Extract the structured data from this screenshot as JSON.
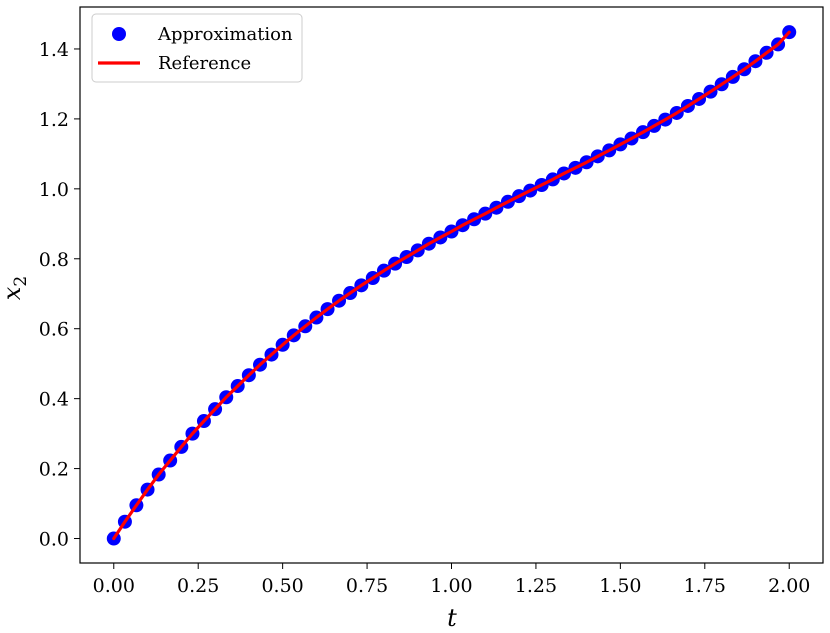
{
  "chart_data": {
    "type": "line",
    "xlabel": "t",
    "ylabel": "x",
    "ylabel_subscript": "2",
    "xlim": [
      -0.1,
      2.1
    ],
    "ylim": [
      -0.07,
      1.52
    ],
    "xticks": [
      0.0,
      0.25,
      0.5,
      0.75,
      1.0,
      1.25,
      1.5,
      1.75,
      2.0
    ],
    "xtick_labels": [
      "0.00",
      "0.25",
      "0.50",
      "0.75",
      "1.00",
      "1.25",
      "1.50",
      "1.75",
      "2.00"
    ],
    "yticks": [
      0.0,
      0.2,
      0.4,
      0.6,
      0.8,
      1.0,
      1.2,
      1.4
    ],
    "ytick_labels": [
      "0.0",
      "0.2",
      "0.4",
      "0.6",
      "0.8",
      "1.0",
      "1.2",
      "1.4"
    ],
    "grid": false,
    "legend": {
      "position": "top-left",
      "entries": [
        {
          "label": "Approximation",
          "marker": "circle",
          "color": "#0000ff"
        },
        {
          "label": "Reference",
          "marker": "line",
          "color": "#ff0000"
        }
      ]
    },
    "series": [
      {
        "name": "Approximation",
        "style": "markers",
        "color": "#0000ff",
        "x": [
          0.0,
          0.033,
          0.067,
          0.1,
          0.133,
          0.167,
          0.2,
          0.233,
          0.267,
          0.3,
          0.333,
          0.367,
          0.4,
          0.433,
          0.467,
          0.5,
          0.533,
          0.567,
          0.6,
          0.633,
          0.667,
          0.7,
          0.733,
          0.767,
          0.8,
          0.833,
          0.867,
          0.9,
          0.933,
          0.967,
          1.0,
          1.033,
          1.067,
          1.1,
          1.133,
          1.167,
          1.2,
          1.233,
          1.267,
          1.3,
          1.333,
          1.367,
          1.4,
          1.433,
          1.467,
          1.5,
          1.533,
          1.567,
          1.6,
          1.633,
          1.667,
          1.7,
          1.733,
          1.767,
          1.8,
          1.833,
          1.867,
          1.9,
          1.933,
          1.967,
          2.0
        ],
        "y": [
          0.0,
          0.048,
          0.095,
          0.14,
          0.183,
          0.223,
          0.262,
          0.3,
          0.336,
          0.37,
          0.404,
          0.436,
          0.467,
          0.497,
          0.526,
          0.554,
          0.581,
          0.607,
          0.632,
          0.656,
          0.68,
          0.702,
          0.724,
          0.745,
          0.766,
          0.786,
          0.805,
          0.824,
          0.843,
          0.861,
          0.878,
          0.896,
          0.913,
          0.929,
          0.946,
          0.963,
          0.979,
          0.995,
          1.011,
          1.027,
          1.044,
          1.06,
          1.076,
          1.093,
          1.11,
          1.127,
          1.144,
          1.162,
          1.18,
          1.198,
          1.217,
          1.237,
          1.257,
          1.278,
          1.299,
          1.32,
          1.342,
          1.365,
          1.389,
          1.413,
          1.448
        ]
      },
      {
        "name": "Reference",
        "style": "line",
        "color": "#ff0000",
        "x": [
          0.0,
          0.033,
          0.067,
          0.1,
          0.133,
          0.167,
          0.2,
          0.233,
          0.267,
          0.3,
          0.333,
          0.367,
          0.4,
          0.433,
          0.467,
          0.5,
          0.533,
          0.567,
          0.6,
          0.633,
          0.667,
          0.7,
          0.733,
          0.767,
          0.8,
          0.833,
          0.867,
          0.9,
          0.933,
          0.967,
          1.0,
          1.033,
          1.067,
          1.1,
          1.133,
          1.167,
          1.2,
          1.233,
          1.267,
          1.3,
          1.333,
          1.367,
          1.4,
          1.433,
          1.467,
          1.5,
          1.533,
          1.567,
          1.6,
          1.633,
          1.667,
          1.7,
          1.733,
          1.767,
          1.8,
          1.833,
          1.867,
          1.9,
          1.933,
          1.967,
          2.0
        ],
        "y": [
          0.0,
          0.048,
          0.095,
          0.14,
          0.183,
          0.223,
          0.262,
          0.3,
          0.336,
          0.37,
          0.404,
          0.436,
          0.467,
          0.497,
          0.526,
          0.554,
          0.581,
          0.607,
          0.632,
          0.656,
          0.68,
          0.702,
          0.724,
          0.745,
          0.766,
          0.786,
          0.805,
          0.824,
          0.843,
          0.861,
          0.878,
          0.896,
          0.913,
          0.929,
          0.946,
          0.963,
          0.979,
          0.995,
          1.011,
          1.027,
          1.044,
          1.06,
          1.076,
          1.093,
          1.11,
          1.127,
          1.144,
          1.162,
          1.18,
          1.198,
          1.217,
          1.237,
          1.257,
          1.278,
          1.299,
          1.32,
          1.342,
          1.365,
          1.389,
          1.413,
          1.448
        ]
      }
    ]
  }
}
